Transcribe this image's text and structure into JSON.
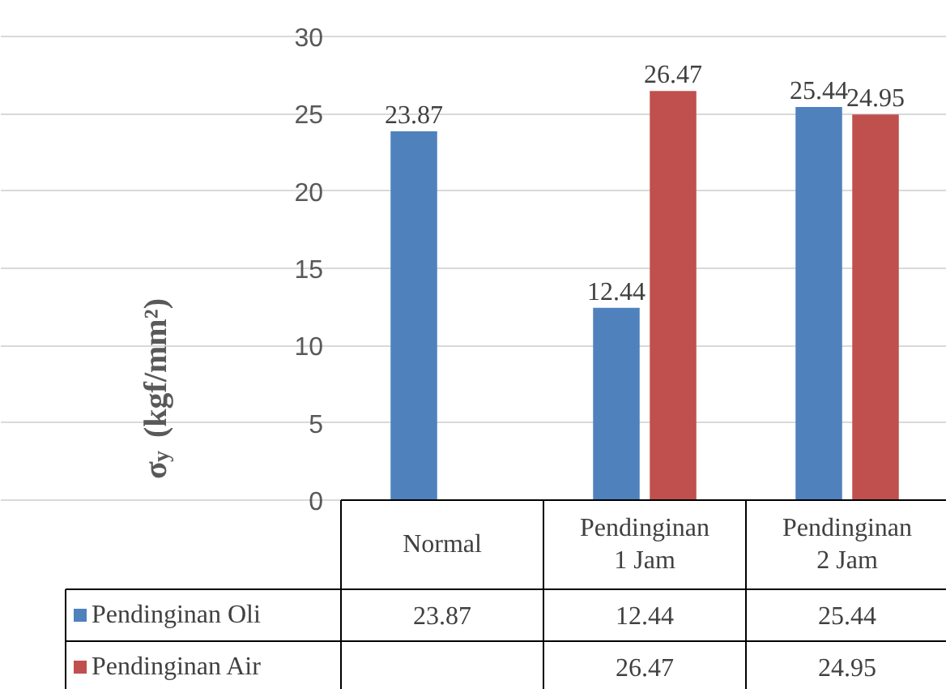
{
  "chart_data": {
    "type": "bar",
    "ylabel": "σ$_{y}$ (kgf/mm²)",
    "categories": [
      "Normal",
      "Pendinginan\n1 Jam",
      "Pendinginan\n2 Jam"
    ],
    "series": [
      {
        "name": "Pendinginan Oli",
        "color": "#4f81bd",
        "values": [
          23.87,
          12.44,
          25.44
        ],
        "value_labels": [
          "23.87",
          "12.44",
          "25.44"
        ]
      },
      {
        "name": "Pendinginan Air",
        "color": "#c0504d",
        "values": [
          null,
          26.47,
          24.95
        ],
        "value_labels": [
          null,
          "26.47",
          "24.95"
        ]
      }
    ],
    "ylim": [
      0,
      30
    ],
    "yticks": [
      0,
      5,
      10,
      15,
      20,
      25,
      30
    ],
    "grid": "y",
    "legend": "bottom",
    "annotations": [
      "23.87",
      "12.44",
      "25.44",
      "26.47",
      "24.95"
    ]
  }
}
